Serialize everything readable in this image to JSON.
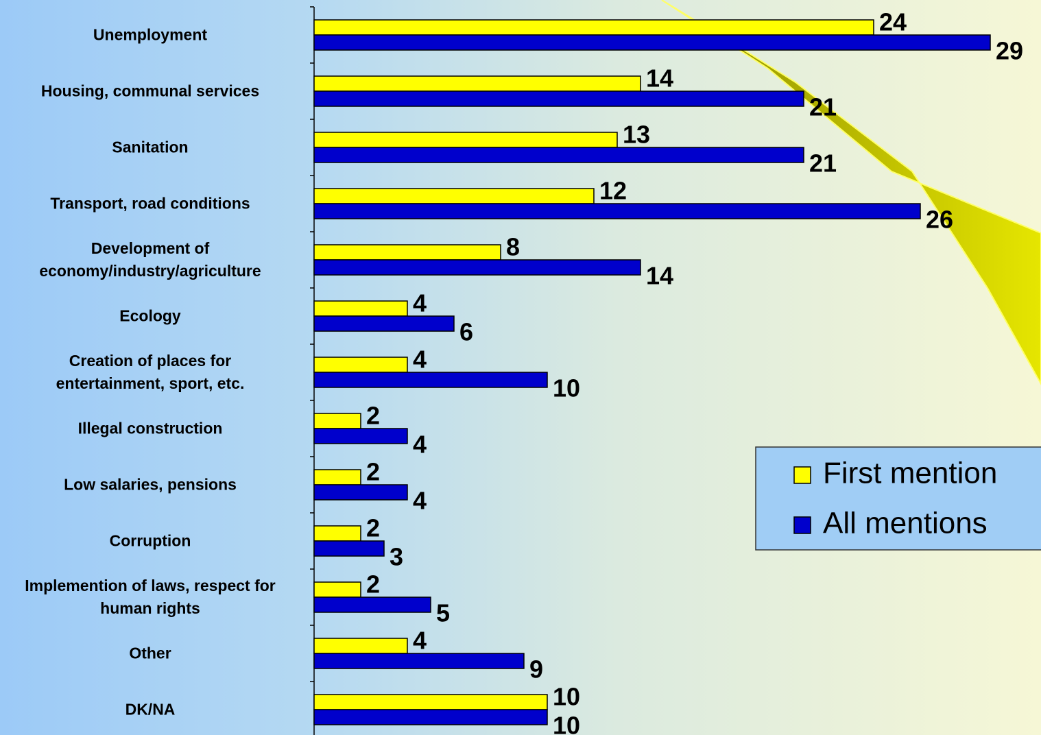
{
  "chart_data": {
    "type": "bar",
    "orientation": "horizontal",
    "categories": [
      "Unemployment",
      "Housing, communal services",
      "Sanitation",
      "Transport, road conditions",
      "Development of\neconomy/industry/agriculture",
      "Ecology",
      "Creation of places for\nentertainment, sport, etc.",
      "Illegal construction",
      "Low salaries, pensions",
      "Corruption",
      "Implemention of laws, respect for\nhuman rights",
      "Other",
      "DK/NA"
    ],
    "series": [
      {
        "name": "First mention",
        "color": "#ffff00",
        "values": [
          24,
          14,
          13,
          12,
          8,
          4,
          4,
          2,
          2,
          2,
          2,
          4,
          10
        ]
      },
      {
        "name": "All mentions",
        "color": "#0000cc",
        "values": [
          29,
          21,
          21,
          26,
          14,
          6,
          10,
          4,
          4,
          3,
          5,
          9,
          10
        ]
      }
    ],
    "xlim": [
      0,
      30
    ],
    "legend": "right",
    "data_labels": true
  }
}
